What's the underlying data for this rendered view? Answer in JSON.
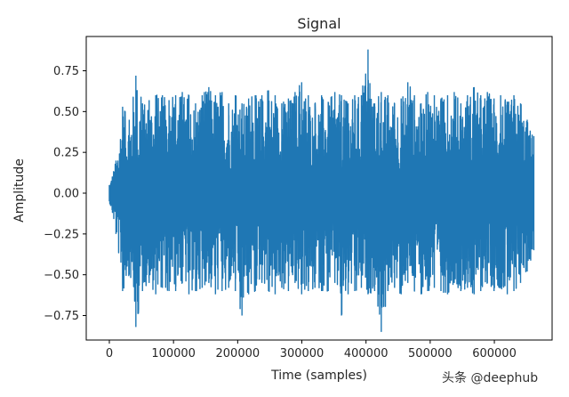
{
  "chart_data": {
    "type": "line",
    "title": "Signal",
    "xlabel": "Time (samples)",
    "ylabel": "Amplitude",
    "xlim": [
      -36000,
      690000
    ],
    "ylim": [
      -0.9,
      0.96
    ],
    "x_ticks": [
      0,
      100000,
      200000,
      300000,
      400000,
      500000,
      600000
    ],
    "x_tick_labels": [
      "0",
      "100000",
      "200000",
      "300000",
      "400000",
      "500000",
      "600000"
    ],
    "y_ticks": [
      0.75,
      0.5,
      0.25,
      0.0,
      -0.25,
      -0.5,
      -0.75
    ],
    "y_tick_labels": [
      "0.75",
      "0.50",
      "0.25",
      "0.00",
      "−0.25",
      "−0.50",
      "−0.75"
    ],
    "grid": false,
    "series": [
      {
        "color": "#1f77b4",
        "x_range": [
          0,
          661500
        ],
        "envelope_max": [
          0.05,
          0.2,
          0.53,
          0.45,
          0.72,
          0.55,
          0.57,
          0.6,
          0.6,
          0.57,
          0.6,
          0.62,
          0.6,
          0.55,
          0.6,
          0.65,
          0.6,
          0.62,
          0.55,
          0.6,
          0.55,
          0.58,
          0.6,
          0.6,
          0.63,
          0.6,
          0.55,
          0.58,
          0.62,
          0.68,
          0.6,
          0.55,
          0.6,
          0.56,
          0.62,
          0.6,
          0.55,
          0.6,
          0.6,
          0.88,
          0.55,
          0.62,
          0.6,
          0.55,
          0.58,
          0.68,
          0.6,
          0.55,
          0.62,
          0.6,
          0.58,
          0.6,
          0.62,
          0.55,
          0.6,
          0.65,
          0.6,
          0.62,
          0.58,
          0.6,
          0.56,
          0.6,
          0.55,
          0.45,
          0.35
        ],
        "envelope_min": [
          -0.05,
          -0.25,
          -0.6,
          -0.5,
          -0.82,
          -0.6,
          -0.55,
          -0.62,
          -0.58,
          -0.6,
          -0.6,
          -0.55,
          -0.62,
          -0.6,
          -0.58,
          -0.55,
          -0.62,
          -0.6,
          -0.58,
          -0.6,
          -0.75,
          -0.62,
          -0.6,
          -0.55,
          -0.6,
          -0.62,
          -0.58,
          -0.6,
          -0.55,
          -0.62,
          -0.6,
          -0.58,
          -0.6,
          -0.6,
          -0.55,
          -0.75,
          -0.62,
          -0.6,
          -0.58,
          -0.62,
          -0.6,
          -0.85,
          -0.6,
          -0.58,
          -0.62,
          -0.55,
          -0.6,
          -0.62,
          -0.6,
          -0.58,
          -0.6,
          -0.62,
          -0.55,
          -0.6,
          -0.58,
          -0.62,
          -0.6,
          -0.55,
          -0.6,
          -0.58,
          -0.62,
          -0.6,
          -0.55,
          -0.48,
          -0.35
        ]
      }
    ]
  },
  "watermark": "头条 @deephub"
}
